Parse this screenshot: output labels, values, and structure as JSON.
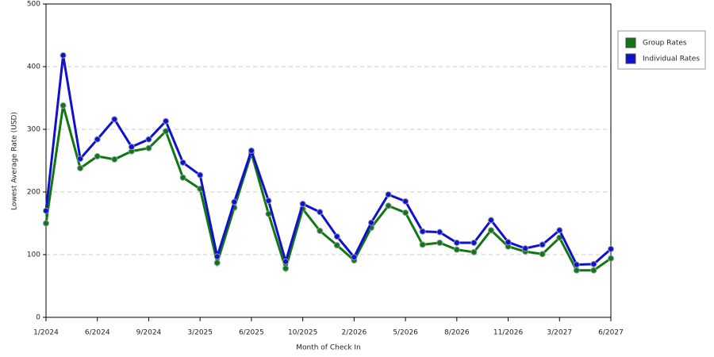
{
  "chart_data": {
    "type": "line",
    "x_label": "Month of Check In",
    "y_label": "Lowest Average Rate (USD)",
    "categories": [
      "1/2024",
      null,
      null,
      "6/2024",
      null,
      null,
      "9/2024",
      null,
      null,
      "3/2025",
      null,
      null,
      "6/2025",
      null,
      null,
      "10/2025",
      null,
      null,
      "2/2026",
      null,
      null,
      "5/2026",
      null,
      null,
      "8/2026",
      null,
      null,
      "11/2026",
      null,
      null,
      "3/2027",
      null,
      null,
      "6/2027"
    ],
    "series": [
      {
        "name": "Group Rates",
        "color": "#117711",
        "values": [
          150,
          338,
          238,
          257,
          252,
          265,
          270,
          297,
          223,
          205,
          87,
          175,
          262,
          165,
          78,
          173,
          138,
          115,
          91,
          143,
          178,
          167,
          116,
          119,
          108,
          104,
          139,
          113,
          105,
          101,
          127,
          75,
          75,
          94
        ]
      },
      {
        "name": "Individual Rates",
        "color": "#1111cc",
        "values": [
          170,
          418,
          253,
          284,
          316,
          272,
          284,
          313,
          247,
          227,
          97,
          184,
          266,
          186,
          89,
          181,
          168,
          129,
          96,
          151,
          196,
          185,
          137,
          136,
          119,
          119,
          155,
          120,
          110,
          116,
          139,
          84,
          85,
          109
        ]
      }
    ],
    "ylim": [
      0,
      500
    ],
    "yticks": [
      0,
      100,
      200,
      300,
      400,
      500
    ],
    "grid": true,
    "legend": "top-right"
  }
}
